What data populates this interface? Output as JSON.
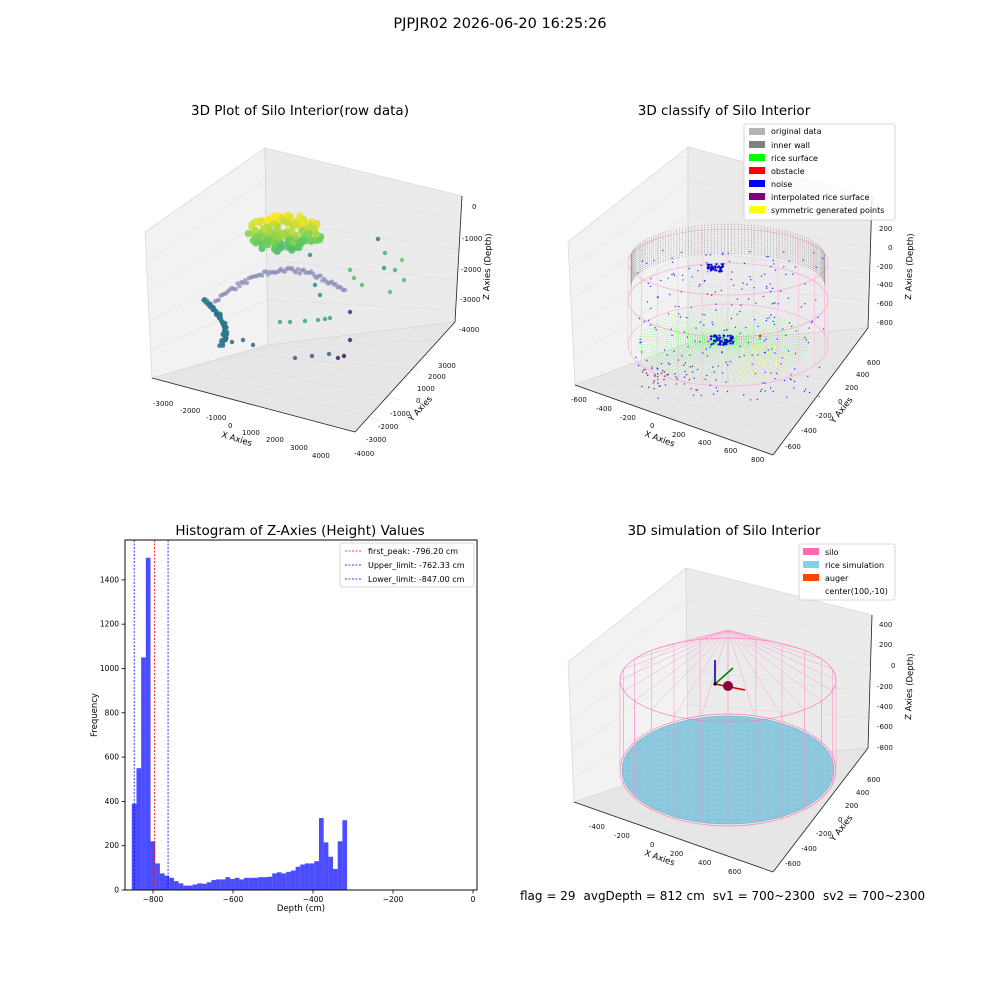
{
  "suptitle": "PJPJR02 2026-06-20 16:25:26",
  "panels": {
    "raw": {
      "title": "3D Plot of Silo Interior(row data)",
      "xlabel": "X Axies",
      "ylabel": "Y Axies",
      "zlabel": "Z Axies (Depth)",
      "xticks": [
        "-3000",
        "-2000",
        "-1000",
        "0",
        "1000",
        "2000",
        "3000",
        "4000"
      ],
      "yticks": [
        "-4000",
        "-3000",
        "-2000",
        "-1000",
        "0",
        "1000",
        "2000",
        "3000"
      ],
      "zticks": [
        "0",
        "-1000",
        "-2000",
        "-3000",
        "-4000"
      ]
    },
    "classify": {
      "title": "3D classify of Silo Interior",
      "xlabel": "X Axies",
      "ylabel": "Y Axies",
      "zlabel": "Z Axies (Depth)",
      "xticks": [
        "-600",
        "-400",
        "-200",
        "0",
        "200",
        "400",
        "600",
        "800"
      ],
      "yticks": [
        "-600",
        "-400",
        "-200",
        "0",
        "200",
        "400",
        "600"
      ],
      "zticks": [
        "200",
        "0",
        "-200",
        "-400",
        "-600",
        "-800"
      ],
      "legend": [
        {
          "label": "original data",
          "color": "#b4b4b4"
        },
        {
          "label": "inner wall",
          "color": "#808080"
        },
        {
          "label": "rice surface",
          "color": "#00ff00"
        },
        {
          "label": "obstacle",
          "color": "#ff0000"
        },
        {
          "label": "noise",
          "color": "#0000ff"
        },
        {
          "label": "interpolated rice surface",
          "color": "#800080"
        },
        {
          "label": "symmetric generated points",
          "color": "#ffff00"
        }
      ]
    },
    "simulation": {
      "title": "3D simulation of Silo Interior",
      "xlabel": "X Axies",
      "ylabel": "Y Axies",
      "zlabel": "Z Axies (Depth)",
      "xticks": [
        "-400",
        "-200",
        "0",
        "200",
        "400",
        "600"
      ],
      "yticks": [
        "-600",
        "-400",
        "-200",
        "0",
        "200",
        "400",
        "600"
      ],
      "zticks": [
        "400",
        "200",
        "0",
        "-200",
        "-400",
        "-600",
        "-800"
      ],
      "legend": [
        {
          "label": "silo",
          "color": "#ff69b4"
        },
        {
          "label": "rice simulation",
          "color": "#87ceeb"
        },
        {
          "label": "auger",
          "color": "#ff4500"
        },
        {
          "label": "center(100,-10)",
          "color": ""
        }
      ]
    }
  },
  "chart_data": {
    "type": "bar",
    "title": "Histogram of Z-Axies (Height) Values",
    "xlabel": "Depth (cm)",
    "ylabel": "Frequency",
    "xlim": [
      -870,
      10
    ],
    "ylim": [
      0,
      1580
    ],
    "xticks": [
      -800,
      -600,
      -400,
      -200,
      0
    ],
    "yticks": [
      0,
      200,
      400,
      600,
      800,
      1000,
      1200,
      1400
    ],
    "bin_width": 11.7,
    "bin_start": -853,
    "values": [
      390,
      550,
      1050,
      1500,
      220,
      120,
      75,
      65,
      55,
      40,
      30,
      20,
      20,
      25,
      30,
      28,
      35,
      45,
      48,
      48,
      58,
      50,
      55,
      48,
      55,
      55,
      55,
      58,
      58,
      60,
      75,
      80,
      75,
      82,
      88,
      105,
      115,
      120,
      120,
      130,
      325,
      215,
      150,
      95,
      220,
      315
    ],
    "bar_color": "#0000ff",
    "vlines": [
      {
        "label": "first_peak: -796.20 cm",
        "x": -796.2,
        "color": "#ff0000"
      },
      {
        "label": "Upper_limit: -762.33 cm",
        "x": -762.33,
        "color": "#0000ff"
      },
      {
        "label": "Lower_limit: -847.00 cm",
        "x": -847.0,
        "color": "#0000ff"
      }
    ],
    "legend_position": "top-right"
  },
  "footer": {
    "flag": "flag = 29",
    "avg_depth": "avgDepth = 812 cm",
    "sv1": "sv1 = 700~2300",
    "sv2": "sv2 = 700~2300"
  }
}
